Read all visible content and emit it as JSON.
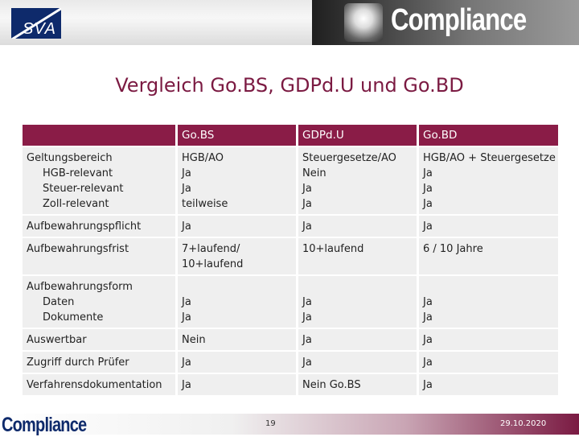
{
  "header": {
    "logo_text": "SVA",
    "banner_title": "Compliance"
  },
  "title": "Vergleich Go.BS, GDPd.U und Go.BD",
  "table": {
    "columns": [
      "",
      "Go.BS",
      "GDPd.U",
      "Go.BD"
    ],
    "rows": [
      {
        "label": [
          "Geltungsbereich",
          "HGB-relevant",
          "Steuer-relevant",
          "Zoll-relevant"
        ],
        "gobs": [
          "HGB/AO",
          "Ja",
          "Ja",
          "teilweise"
        ],
        "gdpdu": [
          "Steuergesetze/AO",
          "Nein",
          "Ja",
          "Ja"
        ],
        "gobd": [
          "HGB/AO + Steuergesetze",
          "Ja",
          "Ja",
          "Ja"
        ]
      },
      {
        "label": [
          "Aufbewahrungspflicht"
        ],
        "gobs": [
          "Ja"
        ],
        "gdpdu": [
          "Ja"
        ],
        "gobd": [
          "Ja"
        ]
      },
      {
        "label": [
          "Aufbewahrungsfrist"
        ],
        "gobs": [
          "7+laufend/",
          "10+laufend"
        ],
        "gdpdu": [
          "10+laufend"
        ],
        "gobd": [
          "6 / 10 Jahre"
        ]
      },
      {
        "label": [
          "Aufbewahrungsform",
          "Daten",
          "Dokumente"
        ],
        "gobs": [
          "Ja",
          "Ja"
        ],
        "gdpdu": [
          "Ja",
          "Ja"
        ],
        "gobd": [
          "Ja",
          "Ja"
        ]
      },
      {
        "label": [
          "Auswertbar"
        ],
        "gobs": [
          "Nein"
        ],
        "gdpdu": [
          "Ja"
        ],
        "gobd": [
          "Ja"
        ]
      },
      {
        "label": [
          "Zugriff durch Prüfer"
        ],
        "gobs": [
          "Ja"
        ],
        "gdpdu": [
          "Ja"
        ],
        "gobd": [
          "Ja"
        ]
      },
      {
        "label": [
          "Verfahrensdokumentation"
        ],
        "gobs": [
          "Ja"
        ],
        "gdpdu": [
          "Nein Go.BS"
        ],
        "gobd": [
          "Ja"
        ]
      }
    ]
  },
  "footer": {
    "logo_text": "Compliance",
    "page_number": "19",
    "date": "29.10.2020"
  },
  "colors": {
    "accent": "#8a1c47",
    "title": "#7b1a42",
    "cell_bg": "#efefef",
    "logo_blue": "#0e2a6b"
  }
}
